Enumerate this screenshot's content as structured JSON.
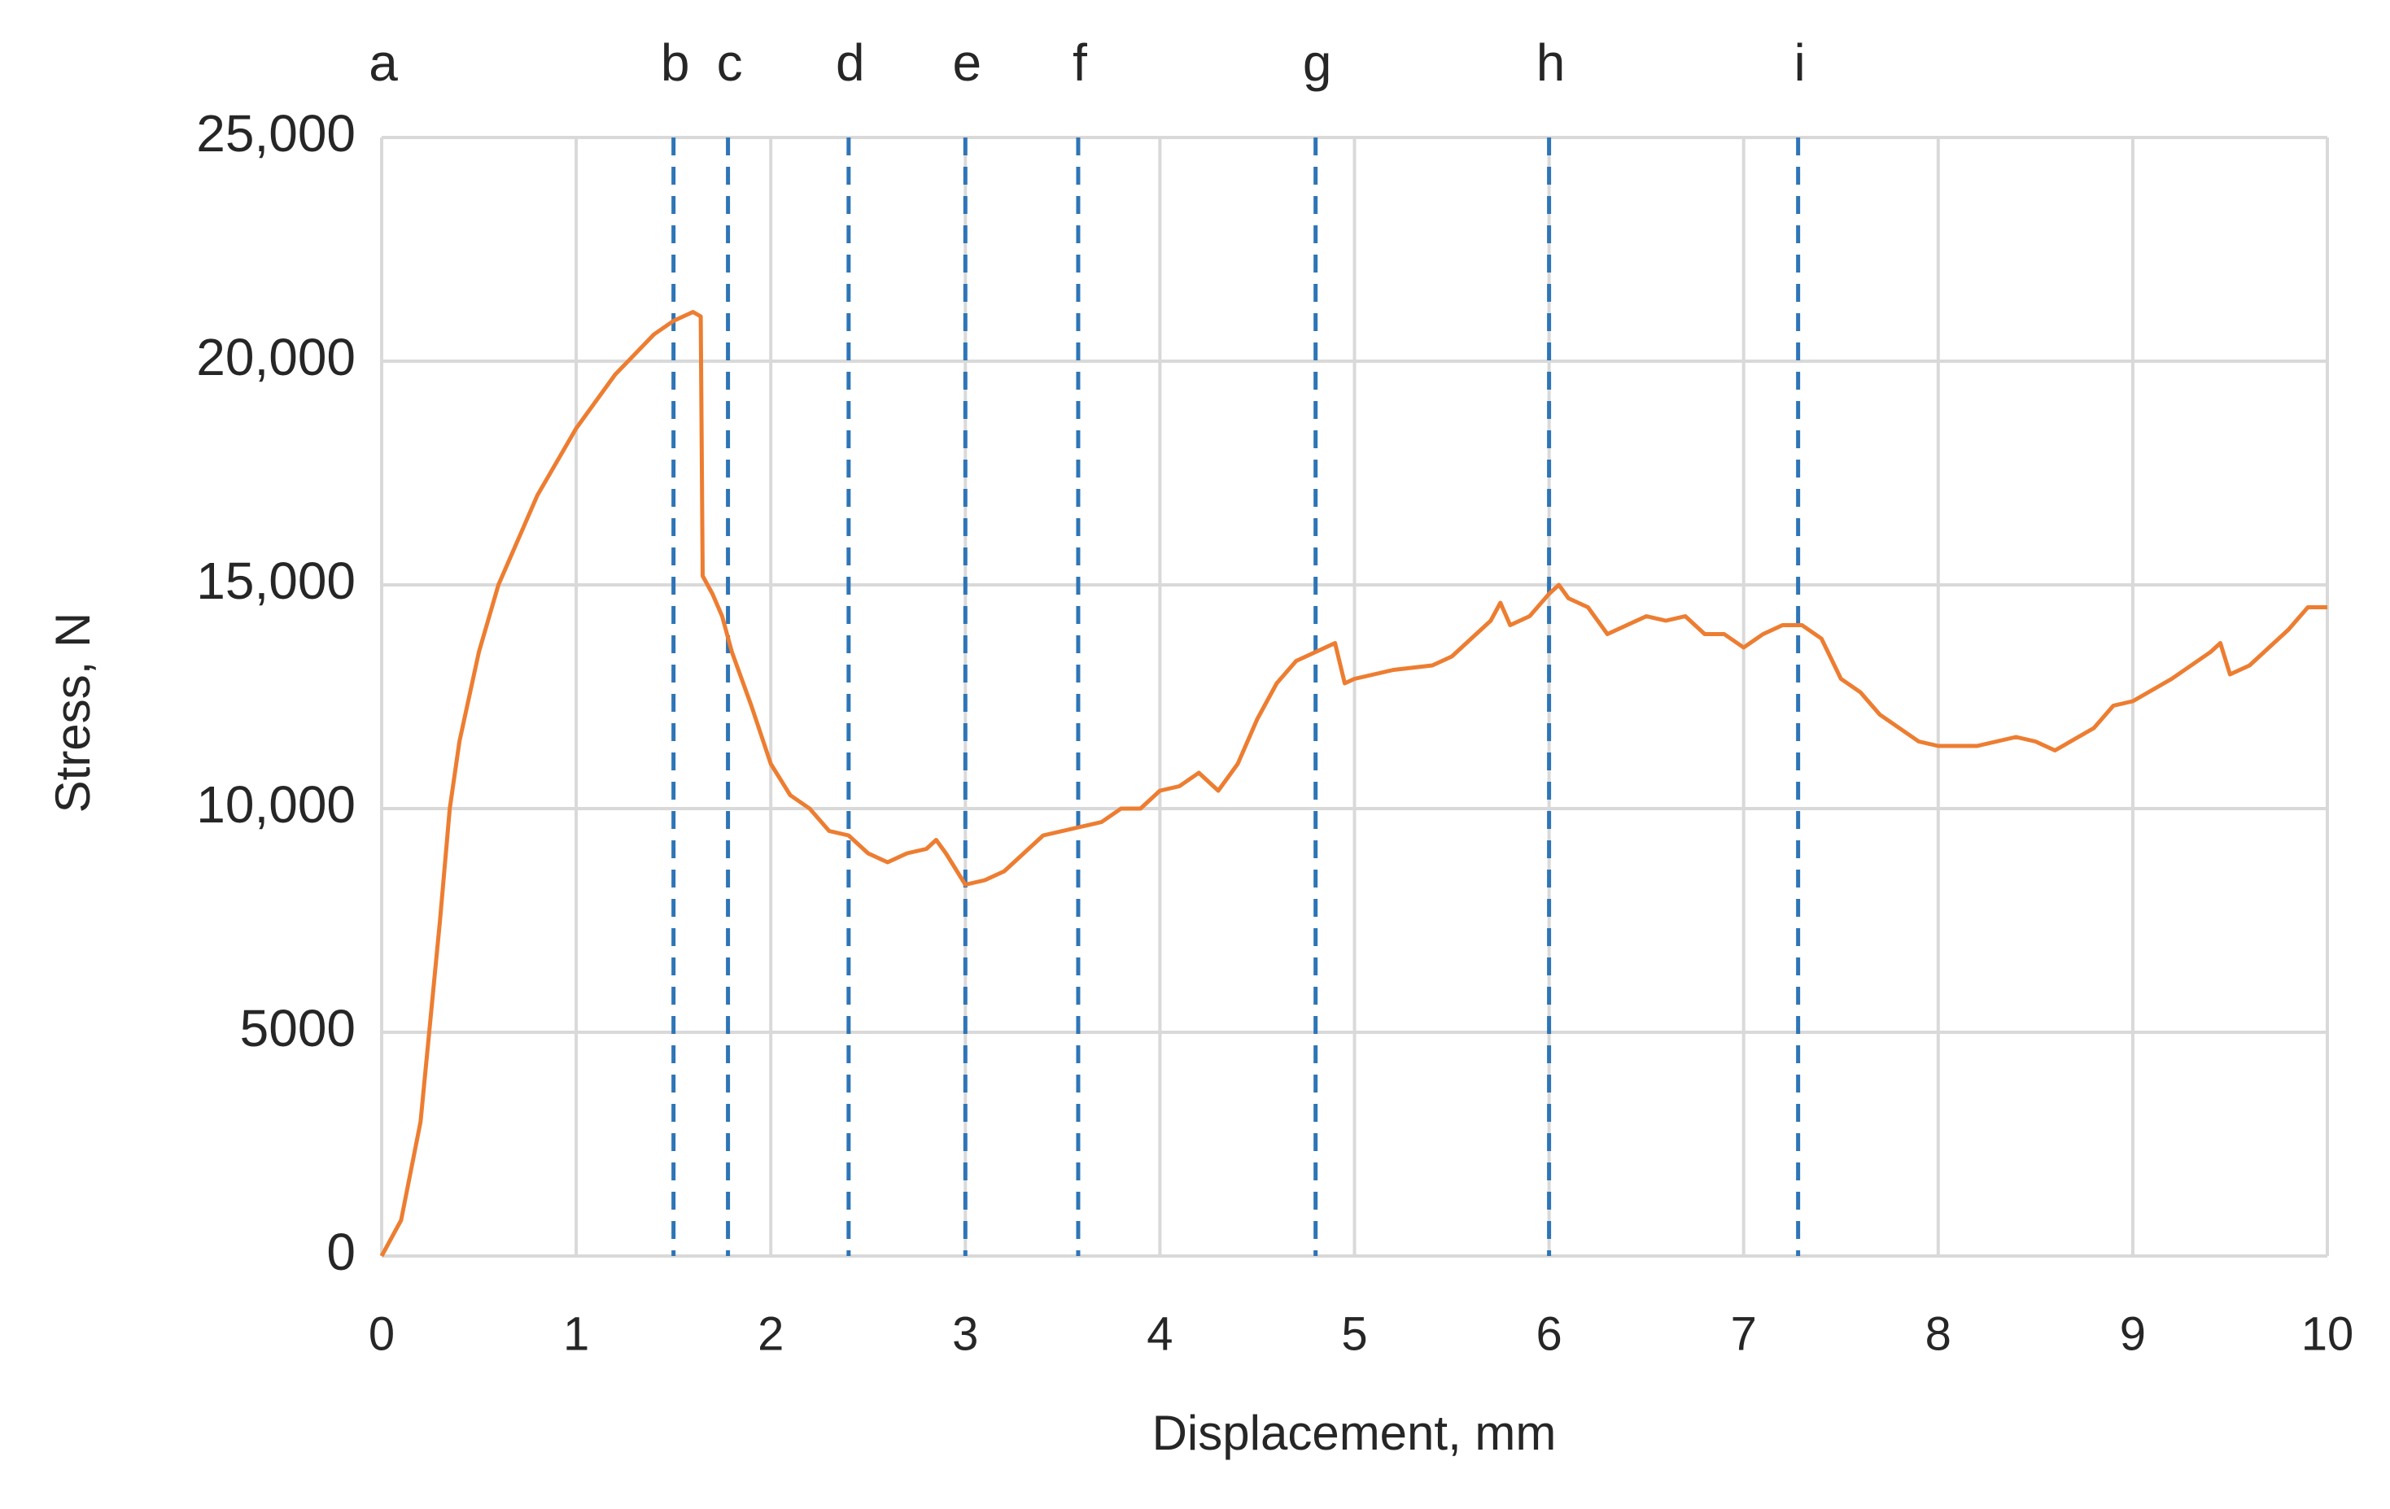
{
  "chart_data": {
    "type": "line",
    "x_label": "Displacement, mm",
    "y_label": "Stress, N",
    "xlim": [
      0,
      10
    ],
    "ylim": [
      0,
      25000
    ],
    "xticks": [
      0,
      1,
      2,
      3,
      4,
      5,
      6,
      7,
      8,
      9,
      10
    ],
    "yticks": [
      0,
      5000,
      {
        "value": 10000,
        "label": "10,000"
      },
      {
        "value": 15000,
        "label": "15,000"
      },
      {
        "value": 20000,
        "label": "20,000"
      },
      {
        "value": 25000,
        "label": "25,000"
      }
    ],
    "grid": true,
    "x": [
      0,
      0.1,
      0.2,
      0.3,
      0.35,
      0.4,
      0.5,
      0.6,
      0.8,
      1.0,
      1.2,
      1.4,
      1.5,
      1.55,
      1.6,
      1.64,
      1.65,
      1.7,
      1.75,
      1.8,
      1.9,
      2.0,
      2.1,
      2.2,
      2.3,
      2.4,
      2.5,
      2.6,
      2.7,
      2.8,
      2.85,
      2.9,
      3.0,
      3.1,
      3.2,
      3.3,
      3.4,
      3.5,
      3.6,
      3.7,
      3.8,
      3.9,
      4.0,
      4.1,
      4.2,
      4.3,
      4.4,
      4.5,
      4.6,
      4.7,
      4.8,
      4.9,
      4.95,
      5.0,
      5.2,
      5.4,
      5.5,
      5.6,
      5.7,
      5.75,
      5.8,
      5.9,
      6.0,
      6.05,
      6.1,
      6.2,
      6.3,
      6.4,
      6.5,
      6.6,
      6.7,
      6.8,
      6.9,
      7.0,
      7.1,
      7.2,
      7.3,
      7.4,
      7.5,
      7.6,
      7.7,
      7.8,
      7.9,
      8.0,
      8.2,
      8.4,
      8.5,
      8.6,
      8.8,
      8.9,
      9.0,
      9.2,
      9.4,
      9.45,
      9.5,
      9.6,
      9.7,
      9.8,
      9.9,
      10.0
    ],
    "series": [
      {
        "name": "Stress",
        "color": "#ed7d31",
        "values": [
          0,
          800,
          3000,
          7500,
          10000,
          11500,
          13500,
          15000,
          17000,
          18500,
          19700,
          20600,
          20900,
          21000,
          21100,
          21000,
          15200,
          14800,
          14300,
          13500,
          12300,
          11000,
          10300,
          10000,
          9500,
          9400,
          9000,
          8800,
          9000,
          9100,
          9300,
          9000,
          8300,
          8400,
          8600,
          9000,
          9400,
          9500,
          9600,
          9700,
          10000,
          10000,
          10400,
          10500,
          10800,
          10400,
          11000,
          12000,
          12800,
          13300,
          13500,
          13700,
          12800,
          12900,
          13100,
          13200,
          13400,
          13800,
          14200,
          14600,
          14100,
          14300,
          14800,
          15000,
          14700,
          14500,
          13900,
          14100,
          14300,
          14200,
          14300,
          13900,
          13900,
          13600,
          13900,
          14100,
          14100,
          13800,
          12900,
          12600,
          12100,
          11800,
          11500,
          11400,
          11400,
          11600,
          11500,
          11300,
          11800,
          12300,
          12400,
          12900,
          13500,
          13700,
          13000,
          13200,
          13600,
          14000,
          14500,
          14500
        ]
      }
    ],
    "markers": [
      {
        "label": "a",
        "x": 0
      },
      {
        "label": "b",
        "x": 1.5
      },
      {
        "label": "c",
        "x": 1.78
      },
      {
        "label": "d",
        "x": 2.4
      },
      {
        "label": "e",
        "x": 3.0
      },
      {
        "label": "f",
        "x": 3.58
      },
      {
        "label": "g",
        "x": 4.8
      },
      {
        "label": "h",
        "x": 6.0
      },
      {
        "label": "i",
        "x": 7.28
      }
    ],
    "marker_color": "#2e75b6"
  }
}
